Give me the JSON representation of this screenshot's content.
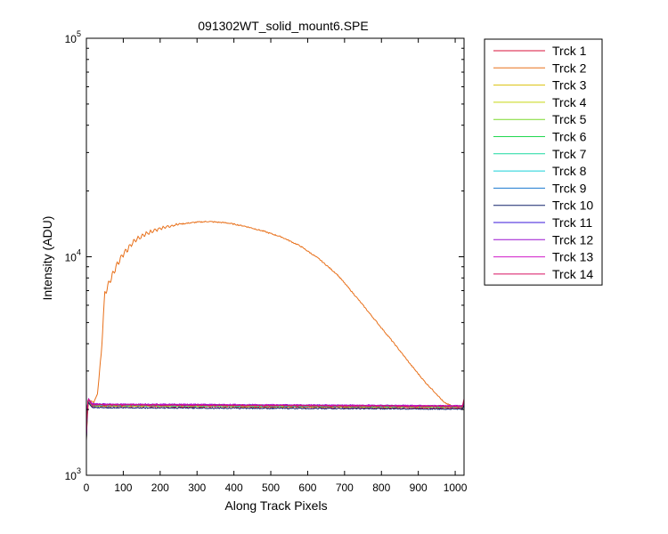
{
  "chart_data": {
    "type": "line",
    "title": "091302WT_solid_mount6.SPE",
    "xlabel": "Along Track Pixels",
    "ylabel": "Intensity (ADU)",
    "xlim": [
      0,
      1024
    ],
    "ylim": [
      1000,
      100000
    ],
    "yscale": "log",
    "x_ticks": [
      0,
      100,
      200,
      300,
      400,
      500,
      600,
      700,
      800,
      900,
      1000
    ],
    "y_ticks": [
      {
        "value": 1000,
        "base": "10",
        "exp": "3"
      },
      {
        "value": 10000,
        "base": "10",
        "exp": "4"
      },
      {
        "value": 100000,
        "base": "10",
        "exp": "5"
      }
    ],
    "grid": false,
    "legend_position": "outside-right",
    "series": [
      {
        "name": "Trck 1",
        "color": "#d8103a",
        "level": 2030,
        "points": [
          [
            0,
            1450
          ],
          [
            3,
            2100
          ],
          [
            6,
            2180
          ],
          [
            15,
            2070
          ],
          [
            1020,
            2030
          ],
          [
            1024,
            2100
          ]
        ]
      },
      {
        "name": "Trck 2",
        "color": "#e8701a",
        "points": [
          [
            0,
            1500
          ],
          [
            5,
            2150
          ],
          [
            10,
            2200
          ],
          [
            20,
            2150
          ],
          [
            30,
            2350
          ],
          [
            40,
            3600
          ],
          [
            50,
            6800
          ],
          [
            60,
            7500
          ],
          [
            80,
            9000
          ],
          [
            100,
            10300
          ],
          [
            130,
            11800
          ],
          [
            160,
            12700
          ],
          [
            200,
            13500
          ],
          [
            250,
            14100
          ],
          [
            300,
            14400
          ],
          [
            330,
            14500
          ],
          [
            380,
            14300
          ],
          [
            430,
            13800
          ],
          [
            480,
            13100
          ],
          [
            530,
            12300
          ],
          [
            580,
            11200
          ],
          [
            630,
            9800
          ],
          [
            680,
            8300
          ],
          [
            730,
            6600
          ],
          [
            780,
            5200
          ],
          [
            830,
            4100
          ],
          [
            880,
            3200
          ],
          [
            920,
            2650
          ],
          [
            950,
            2350
          ],
          [
            970,
            2150
          ],
          [
            990,
            2080
          ],
          [
            1024,
            2080
          ]
        ]
      },
      {
        "name": "Trck 3",
        "color": "#d9c10a",
        "level": 2060,
        "points": [
          [
            0,
            1480
          ],
          [
            3,
            2140
          ],
          [
            6,
            2200
          ],
          [
            15,
            2090
          ],
          [
            1020,
            2060
          ],
          [
            1024,
            2150
          ]
        ]
      },
      {
        "name": "Trck 4",
        "color": "#c8d810",
        "level": 2050,
        "points": [
          [
            0,
            1470
          ],
          [
            3,
            2130
          ],
          [
            6,
            2190
          ],
          [
            15,
            2080
          ],
          [
            1020,
            2050
          ],
          [
            1024,
            2140
          ]
        ]
      },
      {
        "name": "Trck 5",
        "color": "#7ad82a",
        "level": 2055,
        "points": [
          [
            0,
            1490
          ],
          [
            3,
            2120
          ],
          [
            6,
            2200
          ],
          [
            15,
            2090
          ],
          [
            1020,
            2055
          ],
          [
            1024,
            2130
          ]
        ]
      },
      {
        "name": "Trck 6",
        "color": "#22d850",
        "level": 2065,
        "points": [
          [
            0,
            1500
          ],
          [
            3,
            2130
          ],
          [
            6,
            2210
          ],
          [
            15,
            2100
          ],
          [
            1020,
            2065
          ],
          [
            1024,
            2150
          ]
        ]
      },
      {
        "name": "Trck 7",
        "color": "#1ad8a0",
        "level": 2060,
        "points": [
          [
            0,
            1490
          ],
          [
            3,
            2140
          ],
          [
            6,
            2200
          ],
          [
            15,
            2090
          ],
          [
            1020,
            2060
          ],
          [
            1024,
            2140
          ]
        ]
      },
      {
        "name": "Trck 8",
        "color": "#18d0d8",
        "level": 2070,
        "points": [
          [
            0,
            1500
          ],
          [
            3,
            2150
          ],
          [
            6,
            2220
          ],
          [
            15,
            2100
          ],
          [
            1020,
            2070
          ],
          [
            1024,
            2160
          ]
        ]
      },
      {
        "name": "Trck 9",
        "color": "#1a7ad0",
        "level": 2075,
        "points": [
          [
            0,
            1510
          ],
          [
            3,
            2150
          ],
          [
            6,
            2220
          ],
          [
            15,
            2110
          ],
          [
            1020,
            2075
          ],
          [
            1024,
            2160
          ]
        ]
      },
      {
        "name": "Trck 10",
        "color": "#10206a",
        "level": 2010,
        "points": [
          [
            0,
            1440
          ],
          [
            3,
            2080
          ],
          [
            6,
            2150
          ],
          [
            15,
            2040
          ],
          [
            1020,
            2010
          ],
          [
            1024,
            2090
          ]
        ]
      },
      {
        "name": "Trck 11",
        "color": "#3a14d8",
        "level": 2070,
        "points": [
          [
            0,
            1510
          ],
          [
            3,
            2160
          ],
          [
            6,
            2230
          ],
          [
            15,
            2110
          ],
          [
            1020,
            2070
          ],
          [
            1024,
            2170
          ]
        ]
      },
      {
        "name": "Trck 12",
        "color": "#9a10d0",
        "level": 2080,
        "points": [
          [
            0,
            1520
          ],
          [
            3,
            2170
          ],
          [
            6,
            2240
          ],
          [
            15,
            2120
          ],
          [
            1020,
            2080
          ],
          [
            1024,
            2200
          ]
        ]
      },
      {
        "name": "Trck 13",
        "color": "#d018c8",
        "level": 2075,
        "points": [
          [
            0,
            1510
          ],
          [
            3,
            2160
          ],
          [
            6,
            2230
          ],
          [
            15,
            2110
          ],
          [
            1020,
            2075
          ],
          [
            1024,
            2190
          ]
        ]
      },
      {
        "name": "Trck 14",
        "color": "#d81060",
        "level": 2065,
        "points": [
          [
            0,
            1500
          ],
          [
            3,
            2150
          ],
          [
            6,
            2220
          ],
          [
            15,
            2100
          ],
          [
            1020,
            2065
          ],
          [
            1024,
            2250
          ]
        ]
      }
    ]
  }
}
